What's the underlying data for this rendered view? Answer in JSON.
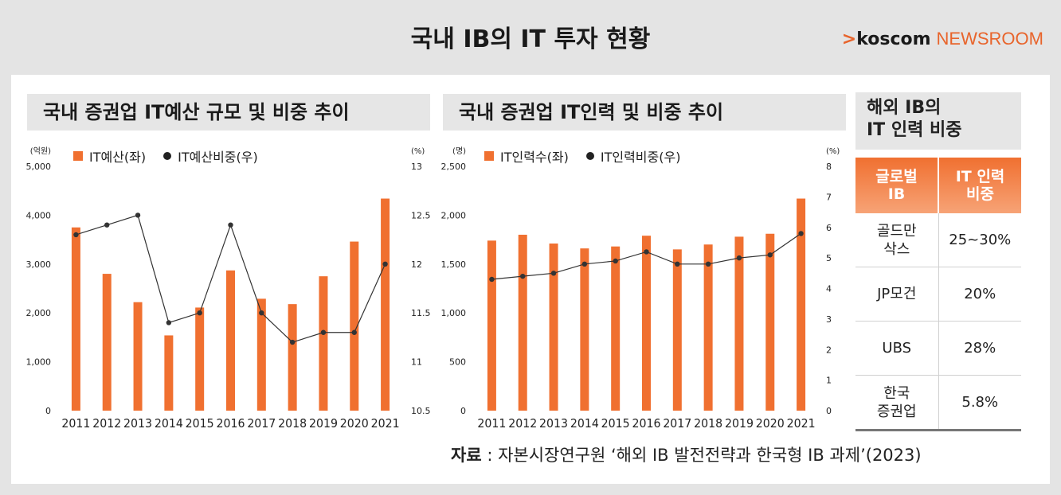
{
  "header": {
    "title": "국내 IB의 IT 투자 현황",
    "brand_arrow": ">",
    "brand_name": "koscom",
    "brand_suffix": "NEWSROOM"
  },
  "chart_data": [
    {
      "type": "bar",
      "title": "국내 증권업 IT예산 규모 및 비중 추이",
      "categories": [
        "2011",
        "2012",
        "2013",
        "2014",
        "2015",
        "2016",
        "2017",
        "2018",
        "2019",
        "2020",
        "2021"
      ],
      "left_unit": "(억원)",
      "right_unit": "(%)",
      "left_ticks": [
        "0",
        "1,000",
        "2,000",
        "3,000",
        "4,000",
        "5,000"
      ],
      "right_ticks": [
        "10.5",
        "11",
        "11.5",
        "12",
        "12.5",
        "13"
      ],
      "ylim": [
        0,
        5000
      ],
      "y2lim": [
        10.5,
        13
      ],
      "series": [
        {
          "name": "IT예산(좌)",
          "kind": "bar",
          "color": "#f07030",
          "values": [
            3750,
            2800,
            2220,
            1540,
            2110,
            2870,
            2290,
            2180,
            2750,
            3460,
            4340
          ]
        },
        {
          "name": "IT예산비중(우)",
          "kind": "line",
          "color": "#333333",
          "values": [
            12.3,
            12.4,
            12.5,
            11.4,
            11.5,
            12.4,
            11.5,
            11.2,
            11.3,
            11.3,
            12.0
          ]
        }
      ]
    },
    {
      "type": "bar",
      "title": "국내 증권업 IT인력 및 비중 추이",
      "categories": [
        "2011",
        "2012",
        "2013",
        "2014",
        "2015",
        "2016",
        "2017",
        "2018",
        "2019",
        "2020",
        "2021"
      ],
      "left_unit": "(명)",
      "right_unit": "(%)",
      "left_ticks": [
        "0",
        "500",
        "1,000",
        "1,500",
        "2,000",
        "2,500"
      ],
      "right_ticks": [
        "0",
        "1",
        "2",
        "3",
        "4",
        "5",
        "6",
        "7",
        "8"
      ],
      "ylim": [
        0,
        2500
      ],
      "y2lim": [
        0,
        8
      ],
      "series": [
        {
          "name": "IT인력수(좌)",
          "kind": "bar",
          "color": "#f07030",
          "values": [
            1740,
            1800,
            1710,
            1660,
            1680,
            1790,
            1650,
            1700,
            1780,
            1810,
            2170
          ]
        },
        {
          "name": "IT인력비중(우)",
          "kind": "line",
          "color": "#333333",
          "values": [
            4.3,
            4.4,
            4.5,
            4.8,
            4.9,
            5.2,
            4.8,
            4.8,
            5.0,
            5.1,
            5.8
          ]
        }
      ]
    }
  ],
  "side_table": {
    "title_line1": "해외 IB의",
    "title_line2": "IT 인력 비중",
    "headers": [
      [
        "글로벌",
        "IB"
      ],
      [
        "IT 인력",
        "비중"
      ]
    ],
    "rows": [
      {
        "name": [
          "골드만",
          "삭스"
        ],
        "value": "25~30%"
      },
      {
        "name": [
          "JP모건",
          ""
        ],
        "value": "20%"
      },
      {
        "name": [
          "UBS",
          ""
        ],
        "value": "28%"
      },
      {
        "name": [
          "한국",
          "증권업"
        ],
        "value": "5.8%"
      }
    ]
  },
  "source": {
    "label": "자료",
    "text": " : 자본시장연구원 ‘해외 IB 발전전략과 한국형 IB 과제’(2023)"
  }
}
